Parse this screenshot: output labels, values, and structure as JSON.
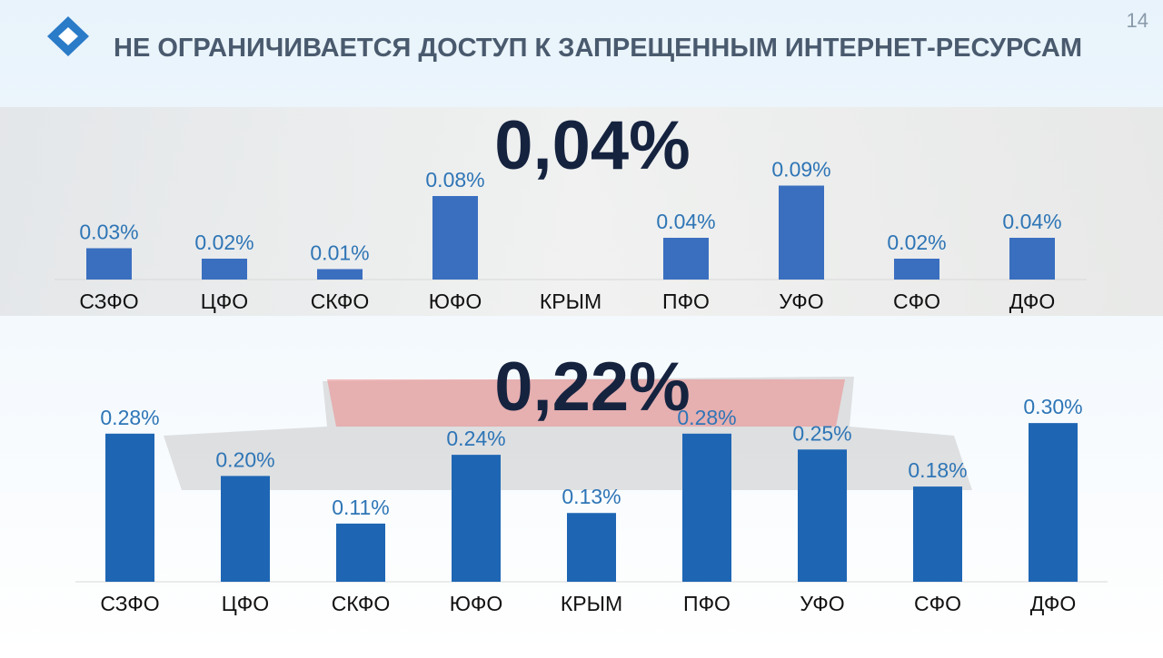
{
  "header": {
    "title": "НЕ ОГРАНИЧИВАЕТСЯ ДОСТУП К ЗАПРЕЩЕННЫМ ИНТЕРНЕТ-РЕСУРСАМ",
    "page_number": "14"
  },
  "chart_data": [
    {
      "type": "bar",
      "title": "0,04%",
      "categories": [
        "СЗФО",
        "ЦФО",
        "СКФО",
        "ЮФО",
        "КРЫМ",
        "ПФО",
        "УФО",
        "СФО",
        "ДФО"
      ],
      "values": [
        0.03,
        0.02,
        0.01,
        0.08,
        null,
        0.04,
        0.09,
        0.02,
        0.04
      ],
      "value_labels": [
        "0.03%",
        "0.02%",
        "0.01%",
        "0.08%",
        null,
        "0.04%",
        "0.09%",
        "0.02%",
        "0.04%"
      ],
      "color": "#3a6fc0",
      "ylim": [
        0,
        0.1
      ]
    },
    {
      "type": "bar",
      "title": "0,22%",
      "categories": [
        "СЗФО",
        "ЦФО",
        "СКФО",
        "ЮФО",
        "КРЫМ",
        "ПФО",
        "УФО",
        "СФО",
        "ДФО"
      ],
      "values": [
        0.28,
        0.2,
        0.11,
        0.24,
        0.13,
        0.28,
        0.25,
        0.18,
        0.3
      ],
      "value_labels": [
        "0.28%",
        "0.20%",
        "0.11%",
        "0.24%",
        "0.13%",
        "0.28%",
        "0.25%",
        "0.18%",
        "0.30%"
      ],
      "color": "#1e66b4",
      "ylim": [
        0,
        0.35
      ]
    }
  ]
}
